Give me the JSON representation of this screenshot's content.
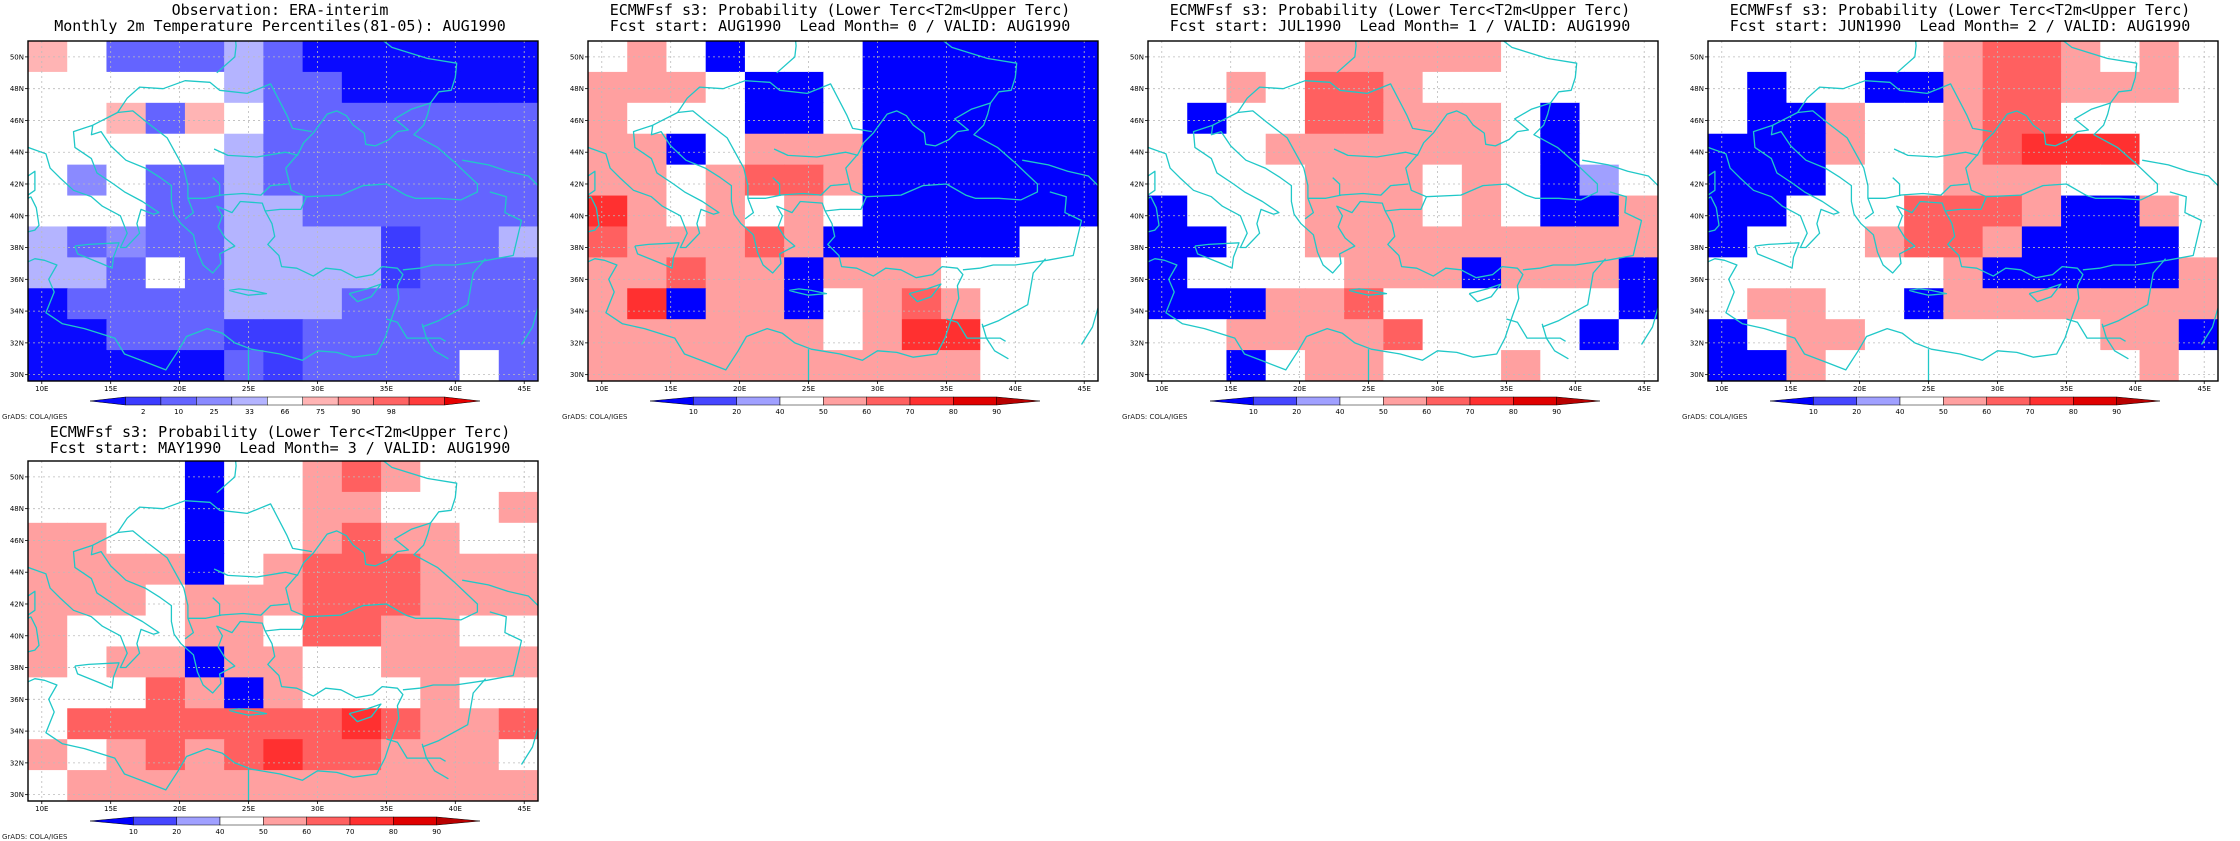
{
  "credit": "GrADS: COLA/IGES",
  "lat_labels": [
    "50N",
    "48N",
    "46N",
    "44N",
    "42N",
    "40N",
    "38N",
    "36N",
    "34N",
    "32N",
    "30N"
  ],
  "lon_labels": [
    "10E",
    "15E",
    "20E",
    "25E",
    "30E",
    "35E",
    "40E",
    "45E"
  ],
  "colors": {
    "obs_levels": [
      "#0a0aff",
      "#3c3cff",
      "#6464ff",
      "#8a8aff",
      "#b4b4ff",
      "#ffffff",
      "#ffb4b4",
      "#ff8a8a",
      "#ff6464",
      "#ff3c3c",
      "#e60000"
    ],
    "prob_levels": [
      "#0000ff",
      "#4646ff",
      "#a0a0ff",
      "#ffffff",
      "#ffa0a0",
      "#ff6060",
      "#ff3030",
      "#e00000",
      "#b80000"
    ],
    "coastline": "#20c8c8"
  },
  "panels": [
    {
      "title_line1": "Observation: ERA-interim",
      "title_line2": "Monthly 2m Temperature Percentiles(81-05): AUG1990",
      "colorbar_ticks": [
        "2",
        "10",
        "25",
        "33",
        "66",
        "75",
        "90",
        "98"
      ],
      "grid_rows_north_to_south": [
        "6522242000000",
        "5555542200000",
        "5562652222222",
        "5555542222222",
        "5352242222222",
        "5552244222222",
        "4232244441224",
        "4425244441222",
        "0222244422222",
        "0022211222222",
        "0000021222252"
      ]
    },
    {
      "title_line1": "ECMWFsf s3: Probability (Lower Terc<T2m<Upper Terc)",
      "title_line2": "Fcst start: AUG1990  Lead Month= 0 / VALID: AUG1990",
      "colorbar_ticks": [
        "10",
        "20",
        "40",
        "50",
        "60",
        "70",
        "80",
        "90"
      ],
      "grid_rows_north_to_south": [
        "3430333000000",
        "4443003000000",
        "4333003000000",
        "4403444000000",
        "4434554000000",
        "6434343000000",
        "5444540000033",
        "4454404443333",
        "4604403454333",
        "4444443466333",
        "4444444444333"
      ]
    },
    {
      "title_line1": "ECMWFsf s3: Probability (Lower Terc<T2m<Upper Terc)",
      "title_line2": "Fcst start: JUL1990  Lead Month= 1 / VALID: AUG1990",
      "colorbar_ticks": [
        "10",
        "20",
        "40",
        "50",
        "60",
        "70",
        "80",
        "90"
      ],
      "grid_rows_north_to_south": [
        "3333444443333",
        "3343554333333",
        "3033554443033",
        "3334444443033",
        "3333444343023",
        "0333444343004",
        "0033444444444",
        "0333344404440",
        "0004453333330",
        "3344445333303",
        "3303443334333"
      ]
    },
    {
      "title_line1": "ECMWFsf s3: Probability (Lower Terc<T2m<Upper Terc)",
      "title_line2": "Fcst start: JUN1990  Lead Month= 2 / VALID: AUG1990",
      "colorbar_ticks": [
        "10",
        "20",
        "40",
        "50",
        "60",
        "70",
        "80",
        "90"
      ],
      "grid_rows_north_to_south": [
        "3333334554343",
        "3033004554443",
        "3004334553333",
        "0004334566633",
        "0003334443333",
        "0033355540043",
        "0333455400003",
        "3333334000004",
        "3443304444444",
        "0344333333440",
        "0043333333343"
      ]
    },
    {
      "title_line1": "ECMWFsf s3: Probability (Lower Terc<T2m<Upper Terc)",
      "title_line2": "Fcst start: MAY1990  Lead Month= 3 / VALID: AUG1990",
      "colorbar_ticks": [
        "10",
        "20",
        "40",
        "50",
        "60",
        "70",
        "80",
        "90"
      ],
      "grid_rows_north_to_south": [
        "3333033454333",
        "3333033443334",
        "4433033454433",
        "4444034555444",
        "4443444555444",
        "4333443554433",
        "4344044334444",
        "3335404333433",
        "3555555565445",
        "4345456554443",
        "3444444444444"
      ]
    }
  ]
}
